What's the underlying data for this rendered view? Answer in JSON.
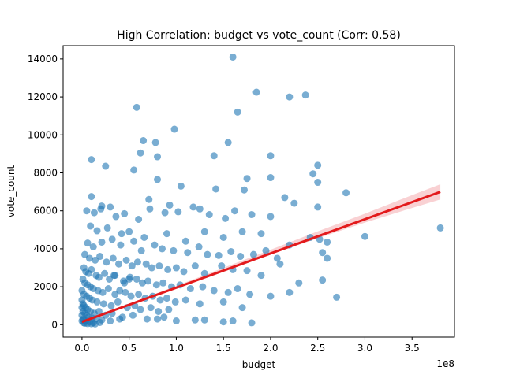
{
  "chart_data": {
    "type": "scatter",
    "title": "High Correlation: budget vs vote_count (Corr: 0.58)",
    "xlabel": "budget",
    "ylabel": "vote_count",
    "x_offset_label": "1e8",
    "xlim": [
      -0.2,
      3.95
    ],
    "ylim": [
      -650,
      14700
    ],
    "x_ticks": [
      0.0,
      0.5,
      1.0,
      1.5,
      2.0,
      2.5,
      3.0,
      3.5
    ],
    "x_tick_labels": [
      "0.0",
      "0.5",
      "1.0",
      "1.5",
      "2.0",
      "2.5",
      "3.0",
      "3.5"
    ],
    "y_ticks": [
      0,
      2000,
      4000,
      6000,
      8000,
      10000,
      12000,
      14000
    ],
    "y_tick_labels": [
      "0",
      "2000",
      "4000",
      "6000",
      "8000",
      "10000",
      "12000",
      "14000"
    ],
    "grid": false,
    "point_color": "#1f77b4",
    "regression_color": "#e31a1c",
    "ci_color": "#f4a3a8",
    "regression": {
      "x": [
        0.0,
        3.8
      ],
      "y": [
        150,
        7000
      ]
    },
    "confidence_band": {
      "x": [
        0.0,
        0.5,
        1.0,
        1.5,
        2.0,
        2.5,
        3.0,
        3.5,
        3.8
      ],
      "lower": [
        60,
        1020,
        1950,
        2850,
        3700,
        4550,
        5380,
        6150,
        6600
      ],
      "upper": [
        240,
        1110,
        2050,
        3000,
        3950,
        4920,
        5850,
        6830,
        7400
      ]
    },
    "series": [
      {
        "x": [
          1.6,
          1.85,
          2.2,
          2.37,
          0.58,
          1.65,
          0.98,
          0.65,
          0.78,
          0.62,
          1.55,
          2.0,
          0.1,
          0.25,
          0.55,
          0.8,
          1.4,
          2.5,
          2.45,
          0.8,
          1.75,
          2.8,
          0.1,
          0.21,
          0.71,
          0.93,
          1.25,
          1.05,
          1.42,
          1.72,
          2.0,
          2.15,
          2.5,
          0.05,
          0.13,
          0.2,
          0.3,
          0.36,
          0.45,
          0.6,
          0.72,
          0.88,
          1.02,
          1.18,
          1.35,
          1.52,
          1.62,
          1.8,
          2.0,
          2.25,
          2.5,
          0.09,
          0.16,
          0.27,
          0.42,
          0.5,
          0.66,
          0.9,
          1.1,
          1.3,
          1.5,
          1.7,
          1.9,
          2.42,
          2.52,
          2.6,
          3.0,
          3.8,
          0.06,
          0.12,
          0.21,
          0.32,
          0.41,
          0.55,
          0.63,
          0.77,
          0.85,
          0.97,
          1.12,
          1.24,
          1.33,
          1.45,
          1.58,
          1.68,
          1.82,
          1.95,
          2.07,
          2.2,
          2.55,
          2.6,
          0.03,
          0.08,
          0.14,
          0.19,
          0.26,
          0.33,
          0.39,
          0.47,
          0.53,
          0.59,
          0.68,
          0.74,
          0.82,
          0.91,
          1.0,
          1.08,
          1.2,
          1.3,
          1.48,
          1.6,
          1.75,
          1.9,
          2.1,
          2.3,
          2.55,
          2.7,
          0.02,
          0.04,
          0.07,
          0.1,
          0.15,
          0.18,
          0.24,
          0.29,
          0.34,
          0.44,
          0.51,
          0.58,
          0.64,
          0.7,
          0.79,
          0.86,
          0.95,
          1.04,
          1.15,
          1.28,
          1.4,
          1.55,
          1.65,
          1.78,
          2.0,
          0.01,
          0.03,
          0.06,
          0.09,
          0.12,
          0.17,
          0.22,
          0.28,
          0.35,
          0.4,
          0.46,
          0.52,
          0.6,
          0.67,
          0.75,
          0.83,
          0.9,
          0.99,
          1.1,
          1.25,
          1.5,
          1.7,
          0.0,
          0.02,
          0.05,
          0.08,
          0.11,
          0.16,
          0.23,
          0.31,
          0.38,
          0.48,
          0.56,
          0.62,
          0.73,
          0.81,
          0.92,
          0.0,
          0.01,
          0.02,
          0.04,
          0.06,
          0.09,
          0.13,
          0.18,
          0.25,
          0.32,
          0.43,
          0.54,
          0.69,
          0.87,
          0.0,
          0.01,
          0.03,
          0.05,
          0.07,
          0.11,
          0.15,
          0.21,
          0.3,
          0.4,
          0.0,
          0.01,
          0.02,
          0.04,
          0.08,
          0.12,
          0.19,
          0.0,
          0.02,
          0.03,
          0.06,
          0.1,
          0.14,
          1.3,
          1.5,
          1.6,
          1.8,
          2.2,
          0.8,
          1.0,
          1.2,
          0.35,
          0.45,
          0.5
        ],
        "y": [
          14100,
          12250,
          12000,
          12100,
          11450,
          11200,
          10300,
          9700,
          9600,
          9050,
          9600,
          8900,
          8700,
          8350,
          8150,
          8850,
          8900,
          8400,
          7950,
          7650,
          7700,
          6950,
          6750,
          6250,
          6600,
          6300,
          6100,
          7300,
          7150,
          7100,
          7750,
          6700,
          7500,
          6000,
          5900,
          6100,
          6200,
          5700,
          5850,
          5550,
          6100,
          5900,
          5950,
          6200,
          5800,
          5600,
          6000,
          5800,
          5700,
          6400,
          6200,
          5200,
          4950,
          5100,
          4800,
          4900,
          4600,
          4800,
          4400,
          4900,
          4600,
          4900,
          4800,
          4600,
          4500,
          4350,
          4650,
          5100,
          4300,
          4100,
          4350,
          4500,
          4200,
          4400,
          3900,
          4200,
          4000,
          3900,
          3800,
          4100,
          3700,
          3650,
          3850,
          3600,
          3700,
          3900,
          3500,
          4200,
          3800,
          3500,
          3700,
          3500,
          3400,
          3600,
          3300,
          3500,
          3200,
          3400,
          3100,
          3300,
          3200,
          3000,
          3100,
          2900,
          3000,
          2800,
          3100,
          2700,
          3100,
          2900,
          2850,
          2600,
          3200,
          2200,
          2350,
          1450,
          3000,
          2800,
          2700,
          2900,
          2600,
          2500,
          2700,
          2400,
          2600,
          2300,
          2500,
          2400,
          2200,
          2300,
          2100,
          2200,
          2000,
          2100,
          1900,
          2000,
          1800,
          1700,
          1900,
          1600,
          1500,
          2400,
          2200,
          2100,
          2000,
          1900,
          1800,
          1700,
          1900,
          1600,
          1800,
          1700,
          1500,
          1600,
          1400,
          1500,
          1300,
          1400,
          1200,
          1300,
          1100,
          1200,
          900,
          1800,
          1600,
          1500,
          1400,
          1300,
          1200,
          1100,
          1000,
          1200,
          900,
          1000,
          800,
          900,
          700,
          800,
          1300,
          1100,
          1000,
          900,
          800,
          700,
          600,
          700,
          500,
          600,
          400,
          500,
          300,
          400,
          900,
          700,
          600,
          500,
          400,
          350,
          300,
          250,
          200,
          300,
          500,
          300,
          250,
          200,
          150,
          100,
          120,
          200,
          100,
          80,
          60,
          50,
          40,
          250,
          150,
          200,
          100,
          1700,
          300,
          200,
          250,
          2600,
          2200,
          2400
        ]
      }
    ]
  }
}
